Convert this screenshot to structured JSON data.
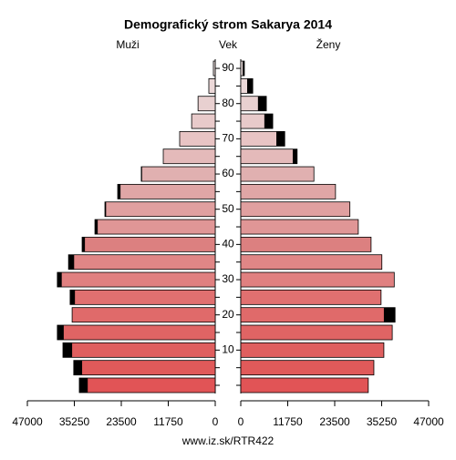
{
  "chart_data": {
    "type": "pyramid",
    "title": "Demografický strom Sakarya 2014",
    "left_label": "Muži",
    "center_label": "Vek",
    "right_label": "Ženy",
    "footer": "www.iz.sk/RTR422",
    "categories": [
      null,
      null,
      "10",
      null,
      "20",
      null,
      "30",
      null,
      "40",
      null,
      "50",
      null,
      "60",
      null,
      "70",
      null,
      "80",
      null,
      "90"
    ],
    "series": [
      {
        "name": "Muži",
        "values": [
          34000,
          35400,
          38100,
          39500,
          35800,
          36300,
          39500,
          36700,
          33300,
          30100,
          27600,
          24400,
          18500,
          13000,
          8900,
          5900,
          4300,
          1600,
          460
        ]
      },
      {
        "name": "Ženy",
        "values": [
          31900,
          33300,
          35800,
          37900,
          38600,
          35100,
          38400,
          35300,
          32600,
          29400,
          27300,
          23700,
          18300,
          14100,
          11000,
          8000,
          6400,
          3000,
          900
        ]
      }
    ],
    "colors": [
      "#e15456",
      "#e05a5a",
      "#df5f5f",
      "#e06464",
      "#e06a6a",
      "#e07070",
      "#e08080",
      "#e08686",
      "#dc8080",
      "#e09696",
      "#e0a0a0",
      "#e0a6a6",
      "#e0b0b0",
      "#e4baba",
      "#e8c4c4",
      "#e8caca",
      "#e8d0d0",
      "#ecd8d8",
      "#eee0e0"
    ],
    "excess_color": "#000000",
    "xlim": [
      0,
      47000
    ],
    "xticks": [
      0,
      11750,
      23500,
      35250,
      47000
    ]
  }
}
